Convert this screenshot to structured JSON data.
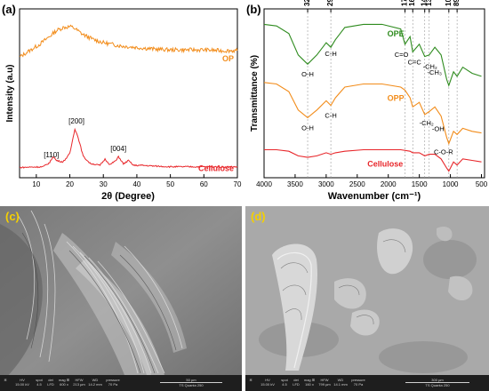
{
  "chart_data": [
    {
      "panel": "(a)",
      "type": "line",
      "xlabel": "2θ (Degree)",
      "ylabel": "Intensity (a.u)",
      "xlim": [
        5,
        70
      ],
      "xticks": [
        "10",
        "20",
        "30",
        "40",
        "50",
        "60",
        "70"
      ],
      "grid": false,
      "series": [
        {
          "name": "OP",
          "color": "#f28c1a",
          "x": [
            5,
            8,
            11,
            14,
            16,
            18,
            20,
            21,
            22,
            24,
            27,
            30,
            35,
            40,
            45,
            50,
            55,
            60,
            65,
            70
          ],
          "y": [
            0.62,
            0.7,
            0.78,
            0.88,
            0.95,
            0.99,
            1.0,
            0.99,
            0.96,
            0.9,
            0.84,
            0.8,
            0.76,
            0.74,
            0.72,
            0.71,
            0.71,
            0.71,
            0.7,
            0.7
          ]
        },
        {
          "name": "Cellulose",
          "color": "#e8262a",
          "x": [
            5,
            12,
            14,
            15,
            16,
            18,
            20,
            21.5,
            22.5,
            24,
            26,
            29,
            30.5,
            32,
            34,
            34.5,
            36,
            37.5,
            39,
            42,
            45,
            50,
            55,
            60,
            65,
            70
          ],
          "y": [
            0.02,
            0.03,
            0.09,
            0.18,
            0.12,
            0.1,
            0.22,
            0.58,
            0.45,
            0.18,
            0.08,
            0.05,
            0.14,
            0.06,
            0.13,
            0.18,
            0.07,
            0.12,
            0.05,
            0.05,
            0.04,
            0.03,
            0.03,
            0.03,
            0.03,
            0.03
          ]
        }
      ],
      "annotations": [
        {
          "text": "[110]",
          "x": 14.5
        },
        {
          "text": "[200]",
          "x": 22
        },
        {
          "text": "[004]",
          "x": 34.5
        }
      ]
    },
    {
      "panel": "(b)",
      "type": "line",
      "xlabel": "Wavenumber (cm⁻¹)",
      "ylabel": "Transmittance (%)",
      "xlim": [
        4000,
        450
      ],
      "xticks": [
        "4000",
        "3500",
        "3000",
        "2500",
        "2000",
        "1500",
        "1000",
        "500"
      ],
      "top_ticks": [
        "3298",
        "2925",
        "1731",
        "1606",
        "1413",
        "1341",
        "1025",
        "892"
      ],
      "top_positions": [
        3298,
        2925,
        1731,
        1606,
        1413,
        1341,
        1025,
        892
      ],
      "grid": false,
      "series": [
        {
          "name": "OPE",
          "color": "#2e8b1e",
          "x": [
            4000,
            3800,
            3600,
            3450,
            3298,
            3150,
            3000,
            2925,
            2850,
            2700,
            2400,
            2100,
            1800,
            1731,
            1650,
            1606,
            1500,
            1413,
            1341,
            1250,
            1150,
            1060,
            1025,
            950,
            892,
            800,
            650,
            500
          ],
          "y": [
            0.98,
            0.97,
            0.92,
            0.78,
            0.72,
            0.78,
            0.86,
            0.83,
            0.88,
            0.96,
            0.98,
            0.98,
            0.95,
            0.85,
            0.9,
            0.8,
            0.85,
            0.77,
            0.78,
            0.83,
            0.78,
            0.62,
            0.58,
            0.67,
            0.64,
            0.7,
            0.66,
            0.64
          ]
        },
        {
          "name": "OPP",
          "color": "#f28c1a",
          "x": [
            4000,
            3800,
            3600,
            3450,
            3298,
            3150,
            3000,
            2925,
            2850,
            2700,
            2400,
            2100,
            1800,
            1731,
            1650,
            1606,
            1500,
            1413,
            1341,
            1250,
            1150,
            1060,
            1025,
            950,
            892,
            800,
            650,
            500
          ],
          "y": [
            0.6,
            0.59,
            0.54,
            0.42,
            0.37,
            0.42,
            0.48,
            0.45,
            0.5,
            0.57,
            0.59,
            0.59,
            0.57,
            0.55,
            0.5,
            0.44,
            0.47,
            0.39,
            0.41,
            0.44,
            0.38,
            0.24,
            0.2,
            0.28,
            0.26,
            0.3,
            0.28,
            0.27
          ]
        },
        {
          "name": "Cellulose",
          "color": "#e8262a",
          "x": [
            4000,
            3800,
            3600,
            3450,
            3298,
            3150,
            3000,
            2925,
            2850,
            2700,
            2400,
            2100,
            1800,
            1650,
            1606,
            1500,
            1413,
            1341,
            1250,
            1150,
            1060,
            1025,
            950,
            892,
            800,
            650,
            500
          ],
          "y": [
            0.16,
            0.16,
            0.15,
            0.12,
            0.11,
            0.12,
            0.14,
            0.13,
            0.14,
            0.15,
            0.16,
            0.16,
            0.16,
            0.15,
            0.14,
            0.14,
            0.12,
            0.13,
            0.13,
            0.1,
            0.04,
            0.02,
            0.08,
            0.06,
            0.1,
            0.09,
            0.08
          ]
        }
      ],
      "annotations": [
        {
          "text": "O-H",
          "x": 3298,
          "series": "OPE"
        },
        {
          "text": "C-H",
          "x": 2925,
          "series": "OPE"
        },
        {
          "text": "C=O",
          "x": 1731,
          "series": "OPE"
        },
        {
          "text": "C=C",
          "x": 1606,
          "series": "OPE"
        },
        {
          "text": "-CH₂",
          "x": 1413,
          "series": "OPE"
        },
        {
          "text": "-CH₃",
          "x": 1341,
          "series": "OPE"
        },
        {
          "text": "C-O-R",
          "x": 1025,
          "series": "OPP"
        },
        {
          "text": "O-H",
          "x": 3298,
          "series": "OPP"
        },
        {
          "text": "C-H",
          "x": 2925,
          "series": "OPP"
        },
        {
          "text": "-CH₂",
          "x": 1413,
          "series": "OPP"
        },
        {
          "text": "-OH",
          "x": 1341,
          "series": "OPP"
        }
      ]
    }
  ],
  "panels": {
    "a_label": "(a)",
    "b_label": "(b)",
    "c_label": "(c)",
    "d_label": "(d)"
  },
  "sem_c": {
    "hv": "HV",
    "hv_val": "15.00 kV",
    "spot": "spot",
    "spot_val": "4.5",
    "det": "det",
    "det_val": "LFD",
    "mag": "mag ⊞",
    "mag_val": "600 x",
    "hfw": "HFW",
    "hfw_val": "213 µm",
    "wd": "WD",
    "wd_val": "14.2 mm",
    "pressure": "pressure",
    "pressure_val": "70 Pa",
    "scale": "50 µm",
    "instrument": "TS Quanta 250"
  },
  "sem_d": {
    "hv": "HV",
    "hv_val": "15.00 kV",
    "spot": "spot",
    "spot_val": "4.5",
    "det": "det",
    "det_val": "LFD",
    "mag": "mag ⊞",
    "mag_val": "160 x",
    "hfw": "HFW",
    "hfw_val": "799 µm",
    "wd": "WD",
    "wd_val": "14.1 mm",
    "pressure": "pressure",
    "pressure_val": "70 Pa",
    "scale": "300 µm",
    "instrument": "TS Quanta 250"
  },
  "colors": {
    "op": "#f28c1a",
    "cellulose": "#e8262a",
    "ope": "#2e8b1e",
    "sem_label": "#f5d000"
  }
}
